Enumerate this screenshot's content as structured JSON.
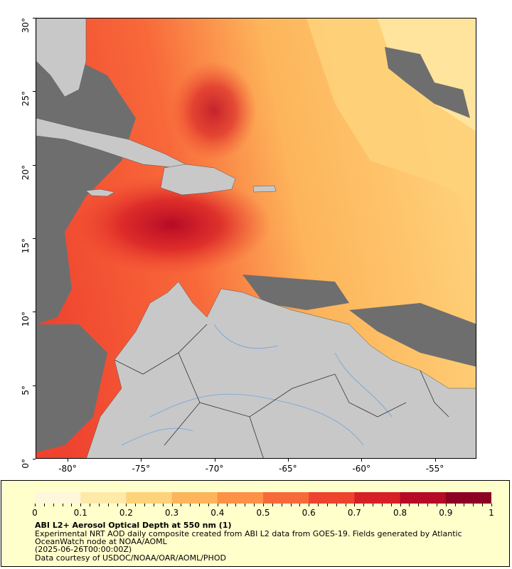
{
  "map": {
    "lat_ticks": [
      "0°",
      "5°",
      "10°",
      "15°",
      "20°",
      "25°",
      "30°"
    ],
    "lon_ticks": [
      "-80°",
      "-75°",
      "-70°",
      "-65°",
      "-60°",
      "-55°"
    ],
    "colors": {
      "land": "#c8c8c8",
      "no_data": "#6e6e6e",
      "rivers": "#6fa3d9",
      "borders": "#333333"
    }
  },
  "legend": {
    "ticks": [
      "0",
      "0.1",
      "0.2",
      "0.3",
      "0.4",
      "0.5",
      "0.6",
      "0.7",
      "0.8",
      "0.9",
      "1"
    ],
    "colormap": [
      "#fff7dc",
      "#ffe9a8",
      "#fed27a",
      "#fdb45a",
      "#fc9147",
      "#f8693a",
      "#ef432f",
      "#d71f26",
      "#b60a26",
      "#8c0024"
    ],
    "title": "ABI L2+ Aerosol Optical Depth at 550 nm (1)",
    "description": "Experimental NRT AOD daily composite created from ABI L2 data from GOES-19. Fields generated by Atlantic OceanWatch node at NOAA/AOML",
    "date": "(2025-06-26T00:00:00Z)",
    "credit": "Data courtesy of USDOC/NOAA/OAR/AOML/PHOD"
  }
}
